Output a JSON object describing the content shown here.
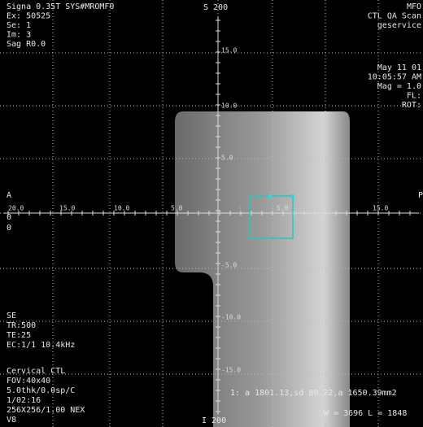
{
  "header_left": [
    "Signa 0.35T SYS#MROMF0",
    "Ex: 50525",
    "Se: 1",
    "Im: 3",
    "Sag R0.0"
  ],
  "top_label": "S 200",
  "bottom_label": "I 200",
  "header_right": [
    "MFO",
    "CTL QA Scan",
    "geservice",
    "May 11 01",
    "10:05:57 AM",
    "Mag = 1.0",
    "FL:",
    "ROT:"
  ],
  "side_left": [
    "A",
    "0",
    "0"
  ],
  "side_right": "P",
  "footer_left": [
    "SE",
    "TR:500",
    "TE:25",
    "EC:1/1 10.4kHz",
    "Cervical CTL",
    "FOV:40x40",
    "5.0thk/0.0sp/C",
    "1/02:16",
    "256X256/1.00 NEX",
    "V8"
  ],
  "roi_label": "1",
  "roi_stats": "1: a 1801.13,sd 80.22,a 1650.39mm2",
  "window": "W = 3696 L = 1848",
  "ruler_vertical": [
    "15.0",
    "10.0",
    "5.0",
    "-5.0",
    "-10.0",
    "-15.0"
  ],
  "ruler_horizontal": [
    "20.0",
    "15.0",
    "10.0",
    "5.0",
    "5.0",
    "15.0"
  ]
}
